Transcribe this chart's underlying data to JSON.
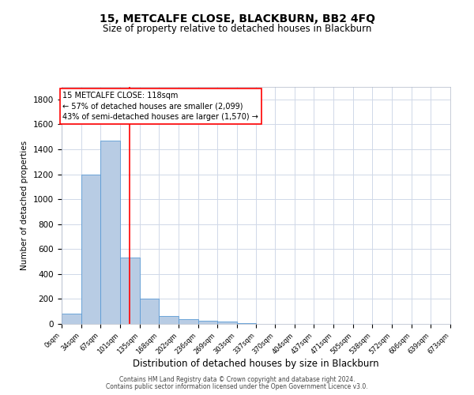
{
  "title": "15, METCALFE CLOSE, BLACKBURN, BB2 4FQ",
  "subtitle": "Size of property relative to detached houses in Blackburn",
  "xlabel": "Distribution of detached houses by size in Blackburn",
  "ylabel": "Number of detached properties",
  "footnote1": "Contains HM Land Registry data © Crown copyright and database right 2024.",
  "footnote2": "Contains public sector information licensed under the Open Government Licence v3.0.",
  "bin_edges": [
    0,
    34,
    67,
    101,
    135,
    168,
    202,
    236,
    269,
    303,
    337,
    370,
    404,
    437,
    471,
    505,
    538,
    572,
    606,
    639,
    673
  ],
  "bin_labels": [
    "0sqm",
    "34sqm",
    "67sqm",
    "101sqm",
    "135sqm",
    "168sqm",
    "202sqm",
    "236sqm",
    "269sqm",
    "303sqm",
    "337sqm",
    "370sqm",
    "404sqm",
    "437sqm",
    "471sqm",
    "505sqm",
    "538sqm",
    "572sqm",
    "606sqm",
    "639sqm",
    "673sqm"
  ],
  "bar_heights": [
    80,
    1200,
    1470,
    535,
    205,
    65,
    38,
    28,
    22,
    8,
    2,
    1,
    1,
    0,
    0,
    0,
    0,
    0,
    0,
    0
  ],
  "bar_color": "#b8cce4",
  "bar_edge_color": "#5b9bd5",
  "property_line_x": 118,
  "property_line_color": "#ff0000",
  "ylim": [
    0,
    1900
  ],
  "yticks": [
    0,
    200,
    400,
    600,
    800,
    1000,
    1200,
    1400,
    1600,
    1800
  ],
  "annotation_text1": "15 METCALFE CLOSE: 118sqm",
  "annotation_text2": "← 57% of detached houses are smaller (2,099)",
  "annotation_text3": "43% of semi-detached houses are larger (1,570) →",
  "annotation_box_color": "#ffffff",
  "annotation_box_edge_color": "#ff0000",
  "background_color": "#ffffff",
  "grid_color": "#d0d8e8",
  "title_fontsize": 10,
  "subtitle_fontsize": 8.5,
  "ylabel_fontsize": 7.5,
  "xlabel_fontsize": 8.5,
  "ytick_fontsize": 7.5,
  "xtick_fontsize": 6,
  "footnote_fontsize": 5.5,
  "annot_fontsize": 7
}
